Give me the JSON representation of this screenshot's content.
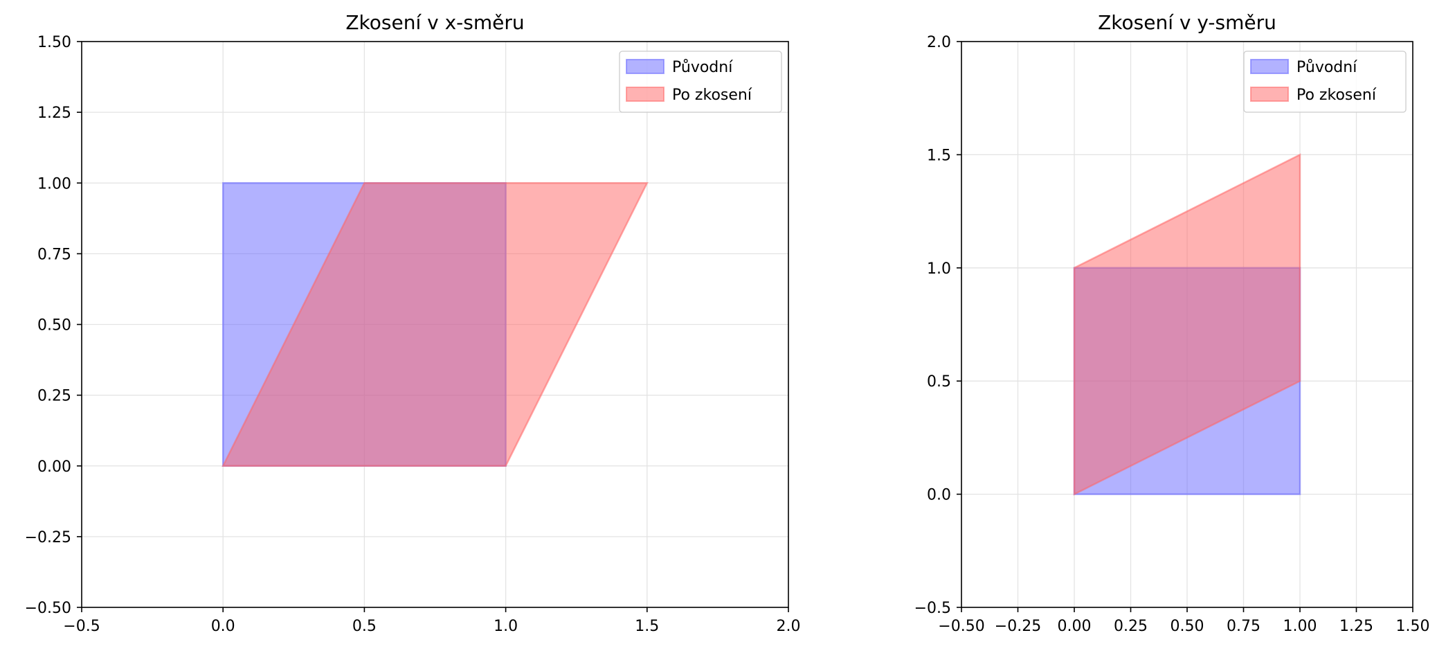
{
  "chart_data": [
    {
      "type": "area",
      "title": "Zkosení v x-směru",
      "xlabel": "",
      "ylabel": "",
      "xlim": [
        -0.5,
        2.0
      ],
      "ylim": [
        -0.5,
        1.5
      ],
      "x_ticks": [
        "−0.5",
        "0.0",
        "0.5",
        "1.0",
        "1.5",
        "2.0"
      ],
      "x_tick_values": [
        -0.5,
        0.0,
        0.5,
        1.0,
        1.5,
        2.0
      ],
      "y_ticks": [
        "−0.50",
        "−0.25",
        "0.00",
        "0.25",
        "0.50",
        "0.75",
        "1.00",
        "1.25",
        "1.50"
      ],
      "y_tick_values": [
        -0.5,
        -0.25,
        0.0,
        0.25,
        0.5,
        0.75,
        1.0,
        1.25,
        1.5
      ],
      "grid": true,
      "legend": "top-right",
      "series": [
        {
          "name": "Původní",
          "color": "#6666ff",
          "points": [
            [
              0,
              0
            ],
            [
              1,
              0
            ],
            [
              1,
              1
            ],
            [
              0,
              1
            ]
          ]
        },
        {
          "name": "Po zkosení",
          "color": "#ff6666",
          "points": [
            [
              0,
              0
            ],
            [
              1,
              0
            ],
            [
              1.5,
              1
            ],
            [
              0.5,
              1
            ]
          ]
        }
      ]
    },
    {
      "type": "area",
      "title": "Zkosení v y-směru",
      "xlabel": "",
      "ylabel": "",
      "xlim": [
        -0.5,
        1.5
      ],
      "ylim": [
        -0.5,
        2.0
      ],
      "x_ticks": [
        "−0.50",
        "−0.25",
        "0.00",
        "0.25",
        "0.50",
        "0.75",
        "1.00",
        "1.25",
        "1.50"
      ],
      "x_tick_values": [
        -0.5,
        -0.25,
        0.0,
        0.25,
        0.5,
        0.75,
        1.0,
        1.25,
        1.5
      ],
      "y_ticks": [
        "−0.5",
        "0.0",
        "0.5",
        "1.0",
        "1.5",
        "2.0"
      ],
      "y_tick_values": [
        -0.5,
        0.0,
        0.5,
        1.0,
        1.5,
        2.0
      ],
      "grid": true,
      "legend": "top-right",
      "series": [
        {
          "name": "Původní",
          "color": "#6666ff",
          "points": [
            [
              0,
              0
            ],
            [
              1,
              0
            ],
            [
              1,
              1
            ],
            [
              0,
              1
            ]
          ]
        },
        {
          "name": "Po zkosení",
          "color": "#ff6666",
          "points": [
            [
              0,
              0
            ],
            [
              1,
              0.5
            ],
            [
              1,
              1.5
            ],
            [
              0,
              1
            ]
          ]
        }
      ]
    }
  ]
}
